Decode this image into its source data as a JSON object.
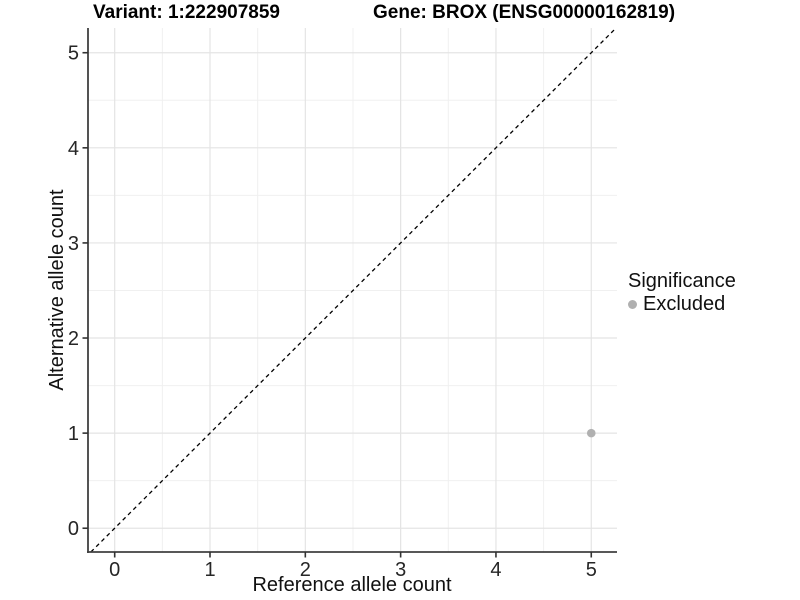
{
  "titles": {
    "variant": "Variant: 1:222907859",
    "gene": "Gene: BROX (ENSG00000162819)"
  },
  "axes": {
    "x_label": "Reference allele count",
    "y_label": "Alternative allele count"
  },
  "legend": {
    "title": "Significance",
    "items": [
      {
        "label": "Excluded",
        "color": "#b0b0b0"
      }
    ]
  },
  "colors": {
    "background": "#ffffff",
    "grid_major": "#e4e4e4",
    "grid_minor": "#f0f0f0",
    "axis_line": "#404040",
    "tick_mark": "#333333",
    "tick_label": "#262626",
    "reference_line": "#000000",
    "point": "#b0b0b0"
  },
  "chart_data": {
    "type": "scatter",
    "title_left": "Variant: 1:222907859",
    "title_right": "Gene: BROX (ENSG00000162819)",
    "xlabel": "Reference allele count",
    "ylabel": "Alternative allele count",
    "xlim": [
      -0.28,
      5.27
    ],
    "ylim": [
      -0.25,
      5.26
    ],
    "x_ticks": [
      0,
      1,
      2,
      3,
      4,
      5
    ],
    "y_ticks": [
      0,
      1,
      2,
      3,
      4,
      5
    ],
    "grid": "major+minor",
    "legend_position": "right",
    "reference_line": {
      "type": "identity",
      "slope": 1,
      "intercept": 0,
      "style": "dashed",
      "color": "#000000"
    },
    "series": [
      {
        "name": "Excluded",
        "color": "#b0b0b0",
        "points": [
          {
            "x": 5,
            "y": 1
          }
        ]
      }
    ]
  }
}
